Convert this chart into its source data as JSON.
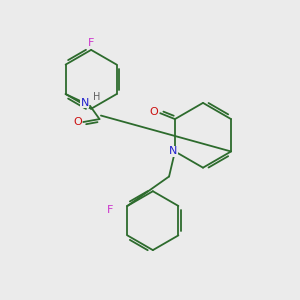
{
  "background_color": "#ebebeb",
  "bond_color": "#2d6b2d",
  "N_color": "#2020cc",
  "O_color": "#cc1111",
  "F_color": "#cc33cc",
  "H_color": "#606060",
  "font_size": 8,
  "lw": 1.3,
  "fig_width": 3.0,
  "fig_height": 3.0,
  "dpi": 100,
  "xlim": [
    0,
    10
  ],
  "ylim": [
    0,
    10
  ]
}
